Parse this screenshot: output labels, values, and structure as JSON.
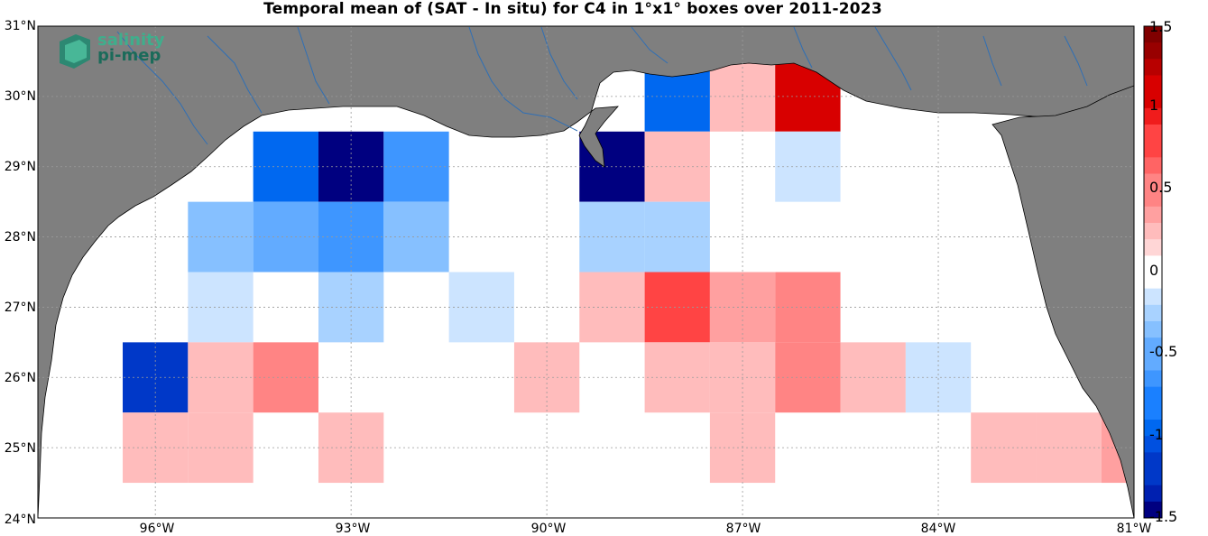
{
  "title": "Temporal mean of (SAT - In situ) for C4 in 1°x1° boxes over 2011-2023",
  "logo": {
    "line1": "salinity",
    "line2": "pi-mep"
  },
  "lat_labels": [
    "31°N",
    "30°N",
    "29°N",
    "28°N",
    "27°N",
    "26°N",
    "25°N",
    "24°N"
  ],
  "lon_labels": [
    "96°W",
    "93°W",
    "90°W",
    "87°W",
    "84°W",
    "81°W"
  ],
  "colorbar": {
    "ticks": [
      "1.5",
      "1",
      "0.5",
      "0",
      "-0.5",
      "-1",
      "-1.5"
    ],
    "min": -1.5,
    "max": 1.5
  },
  "colors": {
    "land": "#7f7f7f",
    "river": "#2f6fb5",
    "neg_max": "#000080",
    "pos_max": "#800000"
  },
  "map_data": {
    "lon_range": [
      -97.8,
      -81
    ],
    "lat_range": [
      24,
      31
    ],
    "cells": [
      {
        "lon": -94,
        "lat": 29,
        "v": -0.9
      },
      {
        "lon": -93,
        "lat": 29,
        "v": -1.5
      },
      {
        "lon": -92,
        "lat": 29,
        "v": -0.7
      },
      {
        "lon": -89,
        "lat": 29,
        "v": -1.5
      },
      {
        "lon": -88,
        "lat": 30,
        "v": -0.9
      },
      {
        "lon": -88,
        "lat": 29,
        "v": 0.2
      },
      {
        "lon": -87,
        "lat": 30,
        "v": 0.3
      },
      {
        "lon": -86,
        "lat": 30,
        "v": 1.1
      },
      {
        "lon": -86,
        "lat": 29,
        "v": -0.15
      },
      {
        "lon": -95,
        "lat": 28,
        "v": -0.4
      },
      {
        "lon": -94,
        "lat": 28,
        "v": -0.55
      },
      {
        "lon": -93,
        "lat": 28,
        "v": -0.65
      },
      {
        "lon": -92,
        "lat": 28,
        "v": -0.4
      },
      {
        "lon": -89,
        "lat": 28,
        "v": -0.3
      },
      {
        "lon": -88,
        "lat": 28,
        "v": -0.3
      },
      {
        "lon": -95,
        "lat": 27,
        "v": -0.15
      },
      {
        "lon": -93,
        "lat": 27,
        "v": -0.3
      },
      {
        "lon": -91,
        "lat": 27,
        "v": -0.15
      },
      {
        "lon": -89,
        "lat": 27,
        "v": 0.2
      },
      {
        "lon": -88,
        "lat": 27,
        "v": 0.75
      },
      {
        "lon": -87,
        "lat": 27,
        "v": 0.35
      },
      {
        "lon": -86,
        "lat": 27,
        "v": 0.45
      },
      {
        "lon": -96,
        "lat": 26,
        "v": -1.2
      },
      {
        "lon": -95,
        "lat": 26,
        "v": 0.2
      },
      {
        "lon": -94,
        "lat": 26,
        "v": 0.45
      },
      {
        "lon": -90,
        "lat": 26,
        "v": 0.2
      },
      {
        "lon": -88,
        "lat": 26,
        "v": 0.3
      },
      {
        "lon": -87,
        "lat": 26,
        "v": 0.2
      },
      {
        "lon": -86,
        "lat": 26,
        "v": 0.45
      },
      {
        "lon": -85,
        "lat": 26,
        "v": 0.2
      },
      {
        "lon": -84,
        "lat": 26,
        "v": -0.15
      },
      {
        "lon": -96,
        "lat": 25,
        "v": 0.2
      },
      {
        "lon": -95,
        "lat": 25,
        "v": 0.2
      },
      {
        "lon": -93,
        "lat": 25,
        "v": 0.2
      },
      {
        "lon": -87,
        "lat": 25,
        "v": 0.3
      },
      {
        "lon": -83,
        "lat": 25,
        "v": 0.2
      },
      {
        "lon": -82,
        "lat": 25,
        "v": 0.2
      },
      {
        "lon": -81,
        "lat": 25,
        "v": 0.35
      }
    ]
  }
}
